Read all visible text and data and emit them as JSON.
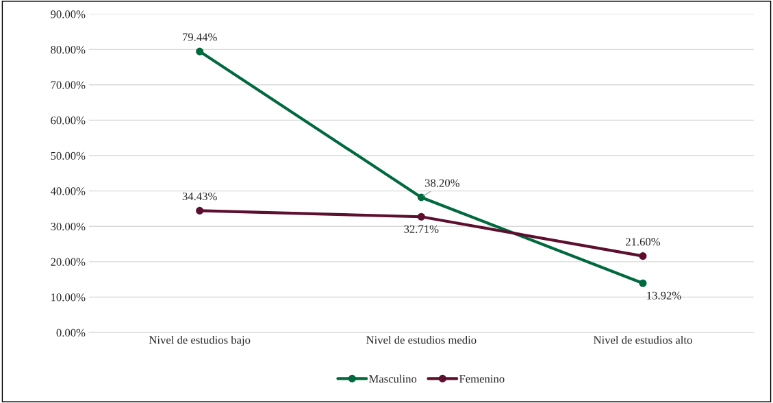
{
  "chart_data": {
    "type": "line",
    "categories": [
      "Nivel de estudios bajo",
      "Nivel de estudios medio",
      "Nivel de estudios alto"
    ],
    "series": [
      {
        "name": "Masculino",
        "color": "#00693e",
        "values": [
          79.44,
          38.2,
          13.92
        ],
        "value_labels": [
          "79.44%",
          "38.20%",
          "13.92%"
        ]
      },
      {
        "name": "Femenino",
        "color": "#5c0f2e",
        "values": [
          34.43,
          32.71,
          21.6
        ],
        "value_labels": [
          "34.43%",
          "32.71%",
          "21.60%"
        ]
      }
    ],
    "ylim": [
      0,
      90
    ],
    "yticks": [
      {
        "value": 0,
        "label": "0.00%"
      },
      {
        "value": 10,
        "label": "10.00%"
      },
      {
        "value": 20,
        "label": "20.00%"
      },
      {
        "value": 30,
        "label": "30.00%"
      },
      {
        "value": 40,
        "label": "40.00%"
      },
      {
        "value": 50,
        "label": "50.00%"
      },
      {
        "value": 60,
        "label": "60.00%"
      },
      {
        "value": 70,
        "label": "70.00%"
      },
      {
        "value": 80,
        "label": "80.00%"
      },
      {
        "value": 90,
        "label": "90.00%"
      }
    ],
    "grid": "y",
    "legend": "bottom",
    "marker": "circle",
    "line_style": "solid"
  }
}
